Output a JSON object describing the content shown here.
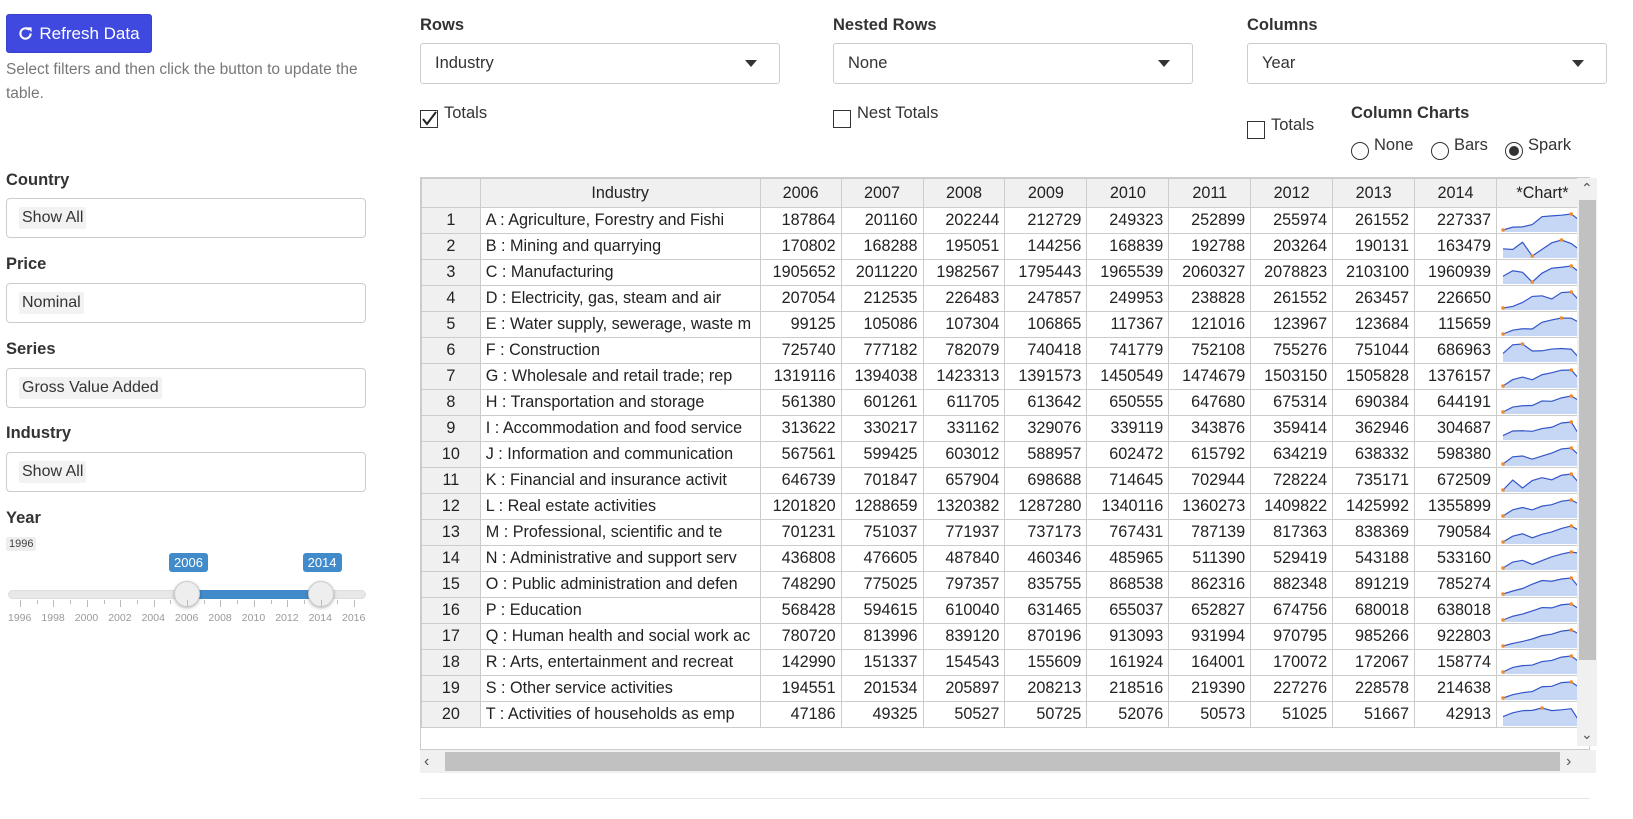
{
  "sidebar": {
    "refresh_label": "Refresh Data",
    "help_text": "Select filters and then click the button to update the table.",
    "country_label": "Country",
    "country_value": "Show All",
    "price_label": "Price",
    "price_value": "Nominal",
    "series_label": "Series",
    "series_value": "Gross Value Added",
    "industry_label": "Industry",
    "industry_value": "Show All",
    "year_label": "Year",
    "year_min": "1996",
    "year_from": "2006",
    "year_to": "2014",
    "year_range_min": 1996,
    "year_range_max": 2016,
    "year_from_value": 2006,
    "year_to_value": 2014,
    "grid_labels": [
      "1996",
      "1998",
      "2000",
      "2002",
      "2004",
      "2006",
      "2008",
      "2010",
      "2012",
      "2014",
      "2016"
    ]
  },
  "controls": {
    "rows_label": "Rows",
    "rows_value": "Industry",
    "nested_rows_label": "Nested Rows",
    "nested_rows_value": "None",
    "columns_label": "Columns",
    "columns_value": "Year",
    "totals_label": "Totals",
    "nest_totals_label": "Nest Totals",
    "col_totals_label": "Totals",
    "column_charts_label": "Column Charts",
    "radio_none": "None",
    "radio_bars": "Bars",
    "radio_spark": "Spark"
  },
  "colors": {
    "accent": "#428bca",
    "button": "#3f49e0",
    "spark_fill": "#c6d6f5",
    "spark_line": "#3356c9",
    "spark_dot": "#f08c2c"
  },
  "table": {
    "columns": [
      "",
      "Industry",
      "2006",
      "2007",
      "2008",
      "2009",
      "2010",
      "2011",
      "2012",
      "2013",
      "2014",
      "*Chart*"
    ],
    "rows": [
      {
        "n": "1",
        "industry": "A : Agriculture, Forestry and Fishi",
        "values": [
          187864,
          201160,
          202244,
          212729,
          249323,
          252899,
          255974,
          261552,
          227337
        ]
      },
      {
        "n": "2",
        "industry": "B : Mining and quarrying",
        "values": [
          170802,
          168288,
          195051,
          144256,
          168839,
          192788,
          203264,
          190131,
          163479
        ]
      },
      {
        "n": "3",
        "industry": "C : Manufacturing",
        "values": [
          1905652,
          2011220,
          1982567,
          1795443,
          1965539,
          2060327,
          2078823,
          2103100,
          1960939
        ]
      },
      {
        "n": "4",
        "industry": "D : Electricity, gas, steam and air",
        "values": [
          207054,
          212535,
          226483,
          247857,
          249953,
          238828,
          261552,
          263457,
          226650
        ]
      },
      {
        "n": "5",
        "industry": "E : Water supply, sewerage, waste m",
        "values": [
          99125,
          105086,
          107304,
          106865,
          117367,
          121016,
          123967,
          123684,
          115659
        ]
      },
      {
        "n": "6",
        "industry": "F : Construction",
        "values": [
          725740,
          777182,
          782079,
          740418,
          741779,
          752108,
          755276,
          751044,
          686963
        ]
      },
      {
        "n": "7",
        "industry": "G : Wholesale and retail trade; rep",
        "values": [
          1319116,
          1394038,
          1423313,
          1391573,
          1450549,
          1474679,
          1503150,
          1505828,
          1376157
        ]
      },
      {
        "n": "8",
        "industry": "H : Transportation and storage",
        "values": [
          561380,
          601261,
          611705,
          613642,
          650555,
          647680,
          675314,
          690384,
          644191
        ]
      },
      {
        "n": "9",
        "industry": "I : Accommodation and food service",
        "values": [
          313622,
          330217,
          331162,
          329076,
          339119,
          343876,
          359414,
          362946,
          304687
        ]
      },
      {
        "n": "10",
        "industry": "J : Information and communication",
        "values": [
          567561,
          599425,
          603012,
          588957,
          602472,
          615792,
          634219,
          638332,
          598380
        ]
      },
      {
        "n": "11",
        "industry": "K : Financial and insurance activit",
        "values": [
          646739,
          701847,
          657904,
          698688,
          714645,
          702944,
          728224,
          735171,
          672509
        ]
      },
      {
        "n": "12",
        "industry": "L : Real estate activities",
        "values": [
          1201820,
          1288659,
          1320382,
          1287280,
          1340116,
          1360273,
          1409822,
          1425992,
          1355899
        ]
      },
      {
        "n": "13",
        "industry": "M : Professional, scientific and te",
        "values": [
          701231,
          751037,
          771937,
          737173,
          767431,
          787139,
          817363,
          838369,
          790584
        ]
      },
      {
        "n": "14",
        "industry": "N : Administrative and support serv",
        "values": [
          436808,
          476605,
          487840,
          460346,
          485965,
          511390,
          529419,
          543188,
          533160
        ]
      },
      {
        "n": "15",
        "industry": "O : Public administration and defen",
        "values": [
          748290,
          775025,
          797357,
          835755,
          868538,
          862316,
          882348,
          891219,
          785274
        ]
      },
      {
        "n": "16",
        "industry": "P : Education",
        "values": [
          568428,
          594615,
          610040,
          631465,
          655037,
          652827,
          674756,
          680018,
          638018
        ]
      },
      {
        "n": "17",
        "industry": "Q : Human health and social work ac",
        "values": [
          780720,
          813996,
          839120,
          870196,
          913093,
          931994,
          970795,
          985266,
          922803
        ]
      },
      {
        "n": "18",
        "industry": "R : Arts, entertainment and recreat",
        "values": [
          142990,
          151337,
          154543,
          155609,
          161924,
          164001,
          170072,
          172067,
          158774
        ]
      },
      {
        "n": "19",
        "industry": "S : Other service activities",
        "values": [
          194551,
          201534,
          205897,
          208213,
          218516,
          219390,
          227276,
          228578,
          214638
        ]
      },
      {
        "n": "20",
        "industry": "T : Activities of households as emp",
        "values": [
          47186,
          49325,
          50527,
          50725,
          52076,
          50573,
          51025,
          51667,
          42913
        ]
      }
    ]
  }
}
